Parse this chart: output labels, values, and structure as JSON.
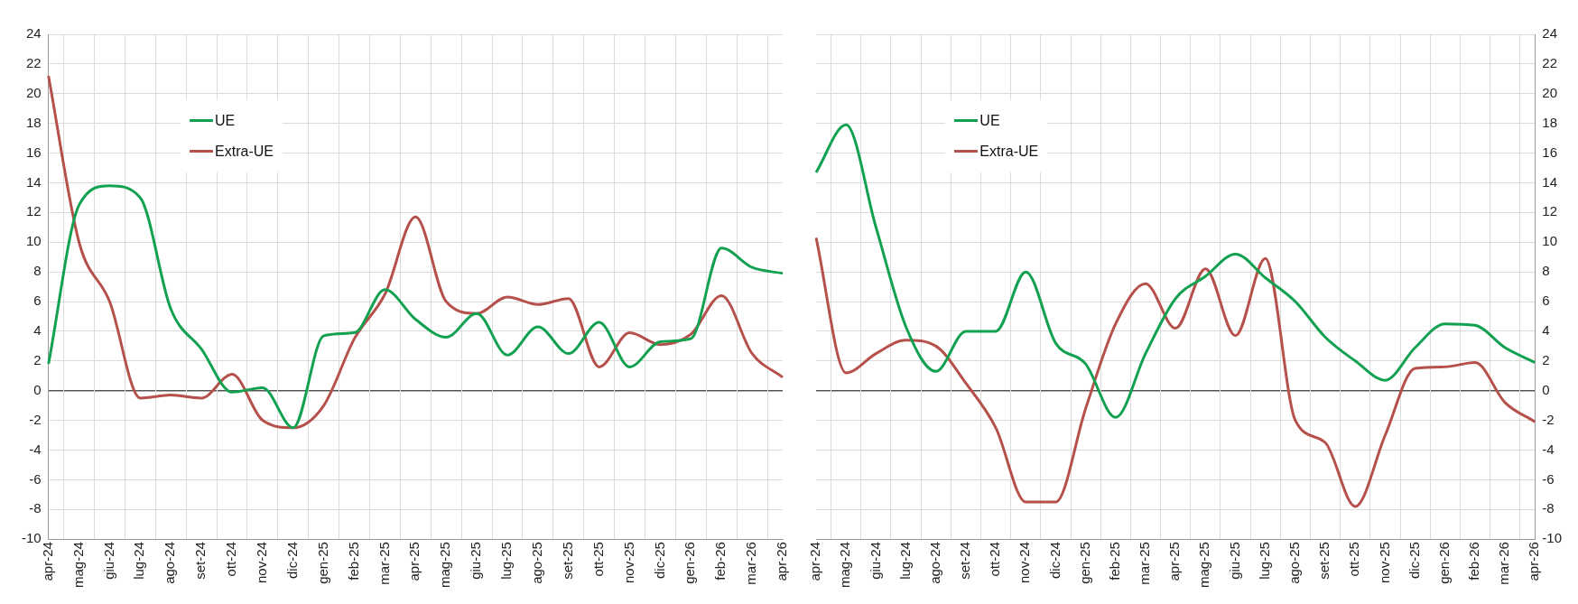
{
  "chart_data": [
    {
      "type": "line",
      "categories": [
        "apr-24",
        "mag-24",
        "giu-24",
        "lug-24",
        "ago-24",
        "set-24",
        "ott-24",
        "nov-24",
        "dic-24",
        "gen-25",
        "feb-25",
        "mar-25",
        "apr-25",
        "mag-25",
        "giu-25",
        "lug-25",
        "ago-25",
        "set-25",
        "ott-25",
        "nov-25",
        "dic-25",
        "gen-26",
        "feb-26",
        "mar-26",
        "apr-26"
      ],
      "series": [
        {
          "name": "UE",
          "color": "#12a150",
          "values": [
            1.8,
            12.5,
            13.8,
            13,
            5.5,
            2.8,
            -0.1,
            0.2,
            -2.5,
            3.7,
            3.9,
            6.8,
            4.8,
            3.6,
            5.2,
            2.4,
            4.3,
            2.5,
            4.6,
            1.6,
            3.3,
            3.5,
            9.6,
            8.3,
            7.9
          ]
        },
        {
          "name": "Extra-UE",
          "color": "#b5504b",
          "values": [
            21.2,
            10,
            6,
            -0.5,
            -0.3,
            -0.5,
            1.1,
            -2,
            -2.5,
            -1,
            3.5,
            6.5,
            11.7,
            6,
            5.2,
            6.3,
            5.8,
            6.2,
            1.6,
            3.9,
            3.1,
            3.8,
            6.4,
            2.5,
            0.9
          ]
        }
      ],
      "ylim": [
        -10,
        24
      ],
      "yticks": [
        -10,
        -8,
        -6,
        -4,
        -2,
        0,
        2,
        4,
        6,
        8,
        10,
        12,
        14,
        16,
        18,
        20,
        22,
        24
      ],
      "grid": true,
      "legend": "top left",
      "marker": "none",
      "line_style": "solid"
    },
    {
      "type": "line",
      "categories": [
        "apr-24",
        "mag-24",
        "giu-24",
        "lug-24",
        "ago-24",
        "set-24",
        "ott-24",
        "nov-24",
        "dic-24",
        "gen-25",
        "feb-25",
        "mar-25",
        "apr-25",
        "mag-25",
        "giu-25",
        "lug-25",
        "ago-25",
        "set-25",
        "ott-25",
        "nov-25",
        "dic-25",
        "gen-26",
        "feb-26",
        "mar-26",
        "apr-26"
      ],
      "series": [
        {
          "name": "UE",
          "color": "#12a150",
          "axis": "y2",
          "values": [
            14.7,
            17.9,
            11,
            4.3,
            1.3,
            4,
            4,
            8,
            3.2,
            1.8,
            -1.8,
            2.5,
            6.2,
            7.7,
            9.2,
            7.6,
            6,
            3.6,
            2,
            0.7,
            2.9,
            4.5,
            4.4,
            2.9,
            1.9
          ]
        },
        {
          "name": "Extra-UE",
          "color": "#b5504b",
          "axis": "y2",
          "values": [
            10.3,
            1.2,
            2.5,
            3.4,
            3,
            0.5,
            -2.5,
            -7.5,
            -7.5,
            -1.2,
            4.5,
            7.2,
            4.2,
            8.2,
            3.7,
            8.9,
            -2,
            -3.5,
            -7.8,
            -3,
            1.5,
            1.6,
            1.9,
            -0.8,
            -2.1
          ]
        }
      ],
      "y2lim": [
        -10,
        24
      ],
      "y2ticks": [
        -10,
        -8,
        -6,
        -4,
        -2,
        0,
        2,
        4,
        6,
        8,
        10,
        12,
        14,
        16,
        18,
        20,
        22,
        24
      ],
      "grid": true,
      "legend": "top left",
      "marker": "none",
      "line_style": "solid"
    }
  ]
}
